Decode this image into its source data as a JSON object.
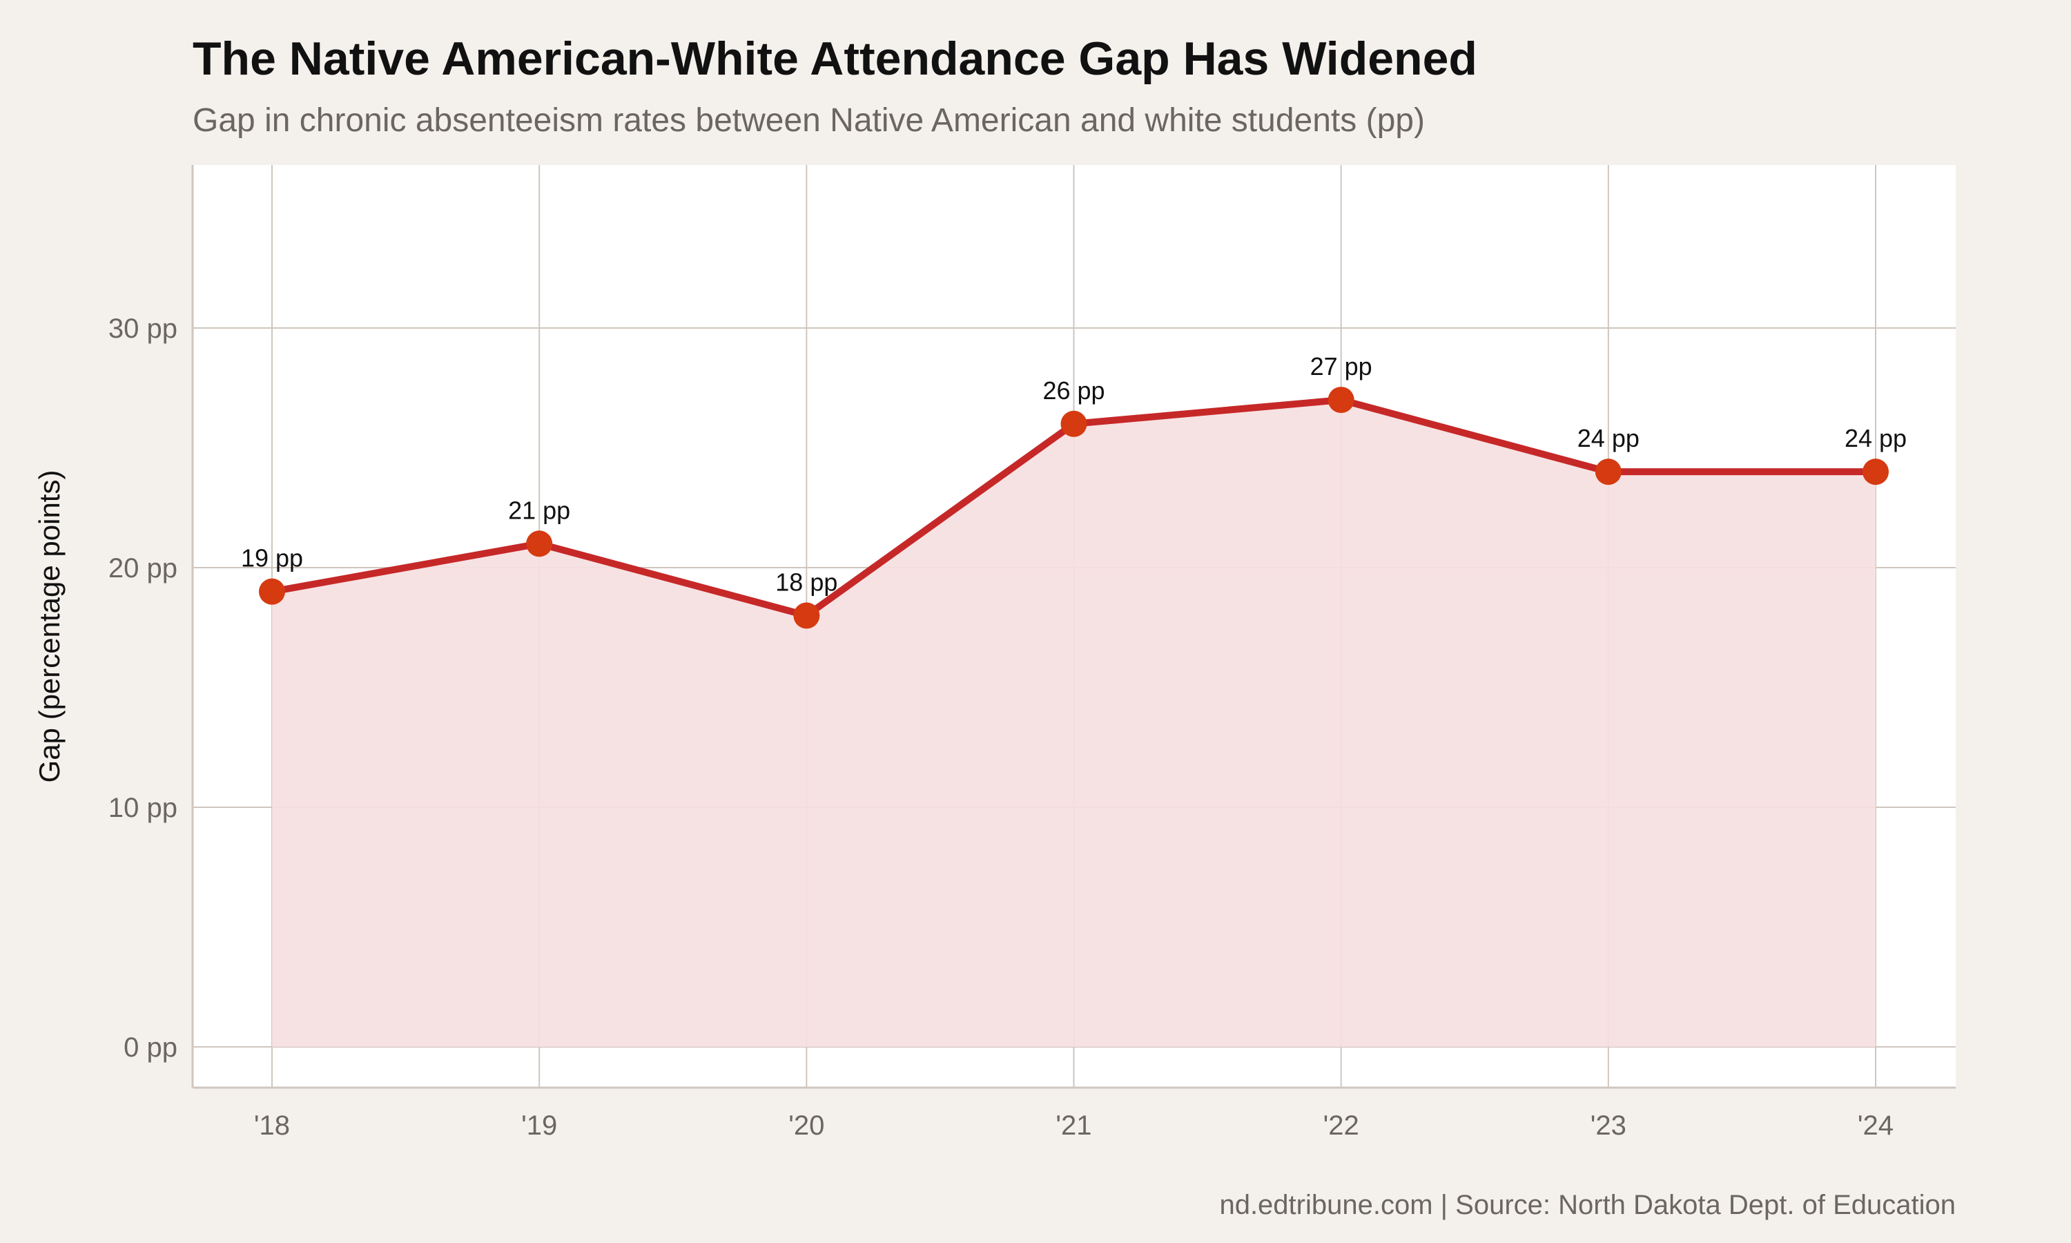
{
  "chart_data": {
    "type": "area",
    "title": "The Native American-White Attendance Gap Has Widened",
    "subtitle": "Gap in chronic absenteeism rates between Native American and white students (pp)",
    "xlabel": "",
    "ylabel": "Gap (percentage points)",
    "categories": [
      "'18",
      "'19",
      "'20",
      "'21",
      "'22",
      "'23",
      "'24"
    ],
    "values": [
      19,
      21,
      18,
      26,
      27,
      24,
      24
    ],
    "data_labels": [
      "19 pp",
      "21 pp",
      "18 pp",
      "26 pp",
      "27 pp",
      "24 pp",
      "24 pp"
    ],
    "yticks": [
      0,
      10,
      20,
      30
    ],
    "ytick_labels": [
      "0 pp",
      "10 pp",
      "20 pp",
      "30 pp"
    ],
    "ylim": [
      -1.7,
      36.8
    ],
    "grid": true,
    "caption": "nd.edtribune.com | Source: North Dakota Dept. of Education",
    "colors": {
      "line": "#c62828",
      "point": "#d63a10",
      "fill": "#f6dfe0",
      "grid": "#cfc6bf",
      "background": "#f4f1ed",
      "panel": "#ffffff"
    }
  }
}
